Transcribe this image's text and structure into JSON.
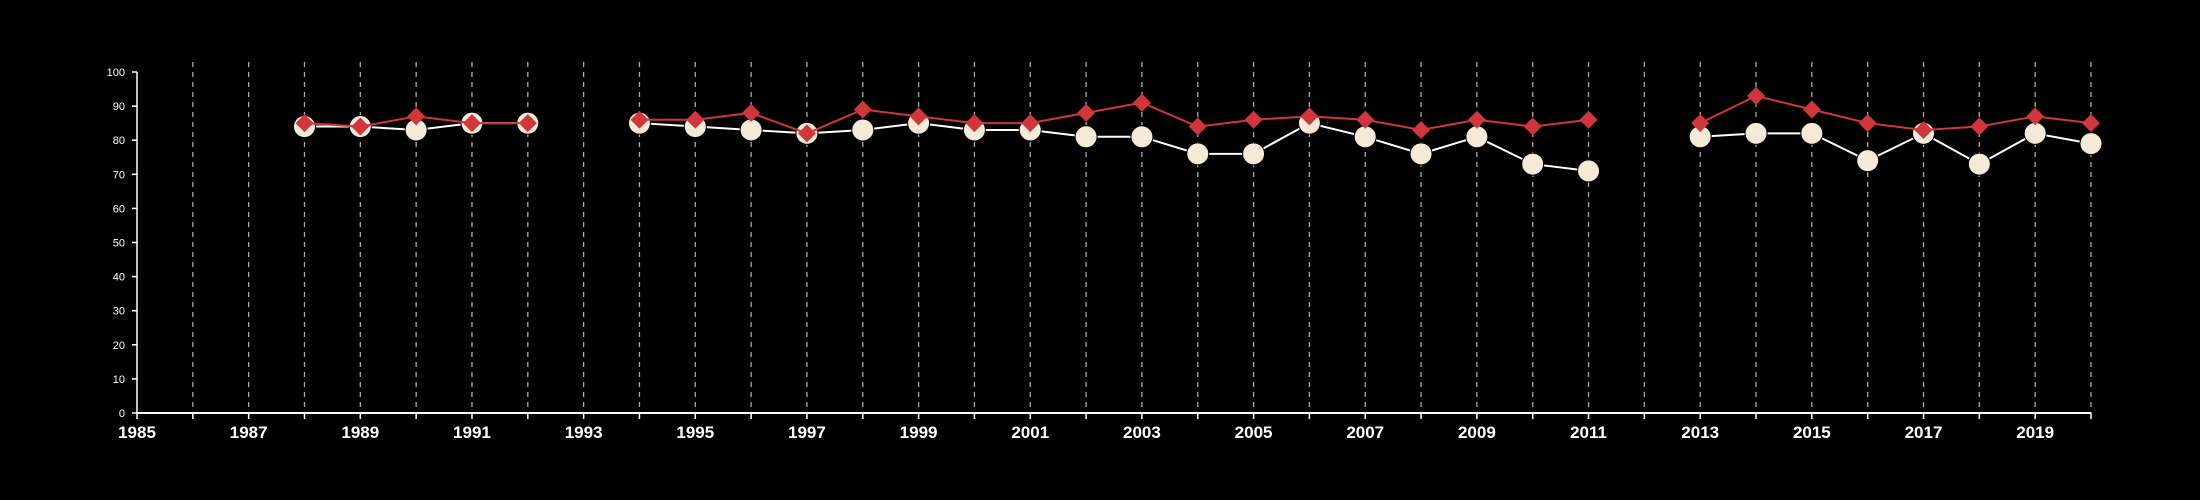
{
  "colors": {
    "background": "#000000",
    "axis": "#ffffff",
    "grid": "#aaaaaa",
    "series_a_fill": "#f5ead8",
    "series_a_line": "#ffffff",
    "series_b": "#d0363b"
  },
  "chart_data": {
    "type": "line",
    "title": "",
    "xlabel": "",
    "ylabel": "",
    "xlim": [
      1985,
      2020
    ],
    "ylim": [
      0,
      100
    ],
    "grid": "vertical dashed lines at each year",
    "legend": "none",
    "y_ticks": [
      0,
      10,
      20,
      30,
      40,
      50,
      60,
      70,
      80,
      90,
      100
    ],
    "x_tick_labels": [
      1985,
      1987,
      1989,
      1991,
      1993,
      1995,
      1997,
      1999,
      2001,
      2003,
      2005,
      2007,
      2009,
      2011,
      2013,
      2015,
      2017,
      2019
    ],
    "series": [
      {
        "marker": "circle",
        "color": "#f5ead8",
        "points": [
          [
            1988,
            84
          ],
          [
            1989,
            84
          ],
          [
            1990,
            83
          ],
          [
            1991,
            85
          ],
          [
            1992,
            85
          ],
          [
            1994,
            85
          ],
          [
            1995,
            84
          ],
          [
            1996,
            83
          ],
          [
            1997,
            82
          ],
          [
            1998,
            83
          ],
          [
            1999,
            85
          ],
          [
            2000,
            83
          ],
          [
            2001,
            83
          ],
          [
            2002,
            81
          ],
          [
            2003,
            81
          ],
          [
            2004,
            76
          ],
          [
            2005,
            76
          ],
          [
            2006,
            85
          ],
          [
            2007,
            81
          ],
          [
            2008,
            76
          ],
          [
            2009,
            81
          ],
          [
            2010,
            73
          ],
          [
            2011,
            71
          ],
          [
            2013,
            81
          ],
          [
            2014,
            82
          ],
          [
            2015,
            82
          ],
          [
            2016,
            74
          ],
          [
            2017,
            82
          ],
          [
            2018,
            73
          ],
          [
            2019,
            82
          ],
          [
            2020,
            79
          ]
        ]
      },
      {
        "marker": "diamond",
        "color": "#d0363b",
        "points": [
          [
            1988,
            85
          ],
          [
            1989,
            84
          ],
          [
            1990,
            87
          ],
          [
            1991,
            85
          ],
          [
            1992,
            85
          ],
          [
            1994,
            86
          ],
          [
            1995,
            86
          ],
          [
            1996,
            88
          ],
          [
            1997,
            82
          ],
          [
            1998,
            89
          ],
          [
            1999,
            87
          ],
          [
            2000,
            85
          ],
          [
            2001,
            85
          ],
          [
            2002,
            88
          ],
          [
            2003,
            91
          ],
          [
            2004,
            84
          ],
          [
            2005,
            86
          ],
          [
            2006,
            87
          ],
          [
            2007,
            86
          ],
          [
            2008,
            83
          ],
          [
            2009,
            86
          ],
          [
            2010,
            84
          ],
          [
            2011,
            86
          ],
          [
            2013,
            85
          ],
          [
            2014,
            93
          ],
          [
            2015,
            89
          ],
          [
            2016,
            85
          ],
          [
            2017,
            83
          ],
          [
            2018,
            84
          ],
          [
            2019,
            87
          ],
          [
            2020,
            85
          ]
        ]
      }
    ]
  }
}
